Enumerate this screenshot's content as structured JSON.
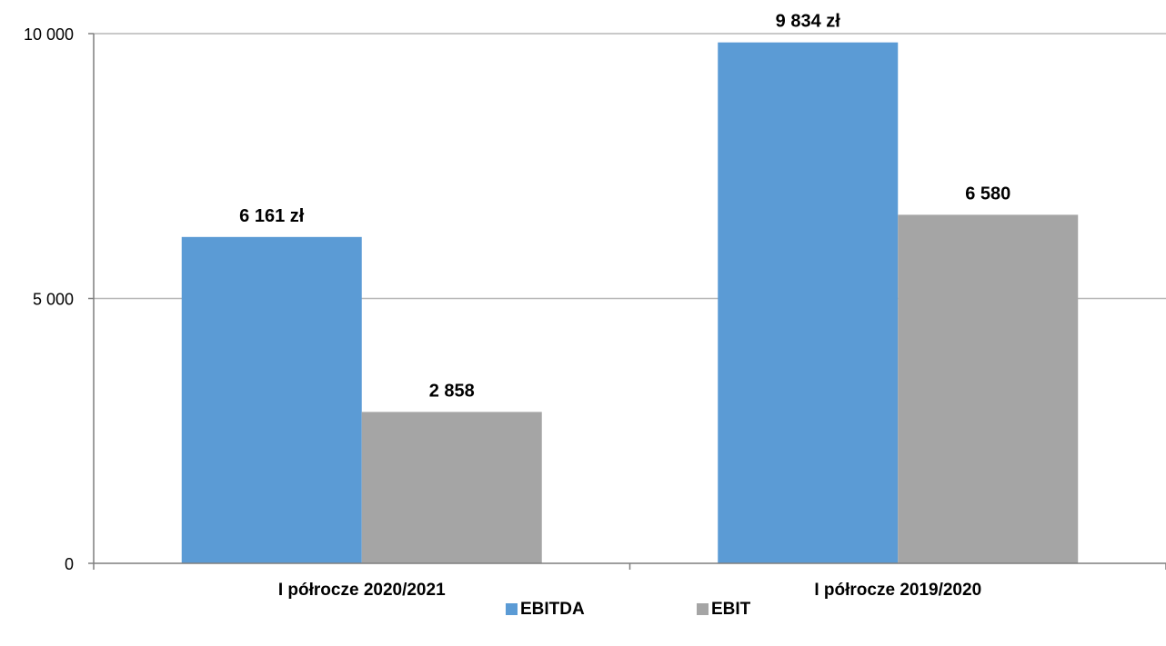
{
  "chart_data": {
    "type": "bar",
    "categories": [
      "I półrocze 2020/2021",
      "I półrocze 2019/2020"
    ],
    "series": [
      {
        "name": "EBITDA",
        "values": [
          6161,
          9834
        ],
        "data_labels": [
          "6 161 zł",
          "9 834 zł"
        ],
        "color": "#5b9bd5"
      },
      {
        "name": "EBIT",
        "values": [
          2858,
          6580
        ],
        "data_labels": [
          "2 858",
          "6 580"
        ],
        "color": "#a5a5a5"
      }
    ],
    "ylim": [
      0,
      10000
    ],
    "yticks": [
      0,
      5000,
      10000
    ],
    "ytick_labels": [
      "0",
      "5 000",
      "10 000"
    ],
    "grid": true,
    "legend_position": "bottom"
  },
  "colors": {
    "gridline": "#b7b7b7",
    "axis": "#7f7f7f"
  }
}
